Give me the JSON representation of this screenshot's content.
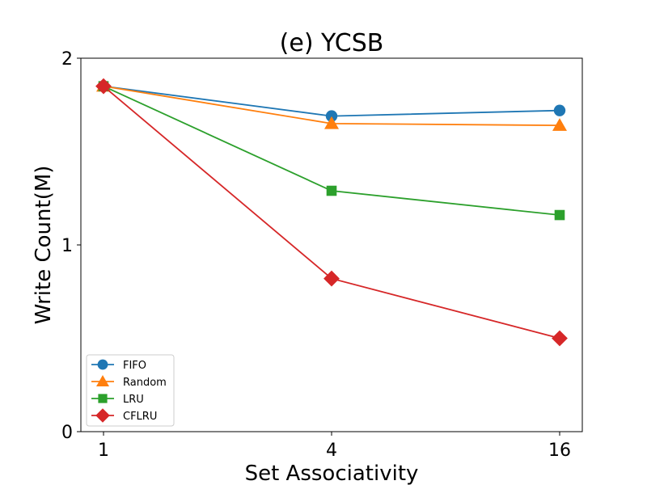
{
  "chart_data": {
    "type": "line",
    "title": "(e) YCSB",
    "xlabel": "Set Associativity",
    "ylabel": "Write Count(M)",
    "categories": [
      "1",
      "4",
      "16"
    ],
    "ylim": [
      0,
      2
    ],
    "yticks": [
      "0",
      "1",
      "2"
    ],
    "grid": false,
    "legend_position": "lower-left",
    "series": [
      {
        "name": "FIFO",
        "color": "#1f77b4",
        "marker": "circle",
        "values": [
          1.85,
          1.69,
          1.72
        ]
      },
      {
        "name": "Random",
        "color": "#ff7f0e",
        "marker": "triangle",
        "values": [
          1.85,
          1.65,
          1.64
        ]
      },
      {
        "name": "LRU",
        "color": "#2ca02c",
        "marker": "square",
        "values": [
          1.85,
          1.29,
          1.16
        ]
      },
      {
        "name": "CFLRU",
        "color": "#d62728",
        "marker": "diamond",
        "values": [
          1.85,
          0.82,
          0.5
        ]
      }
    ]
  }
}
